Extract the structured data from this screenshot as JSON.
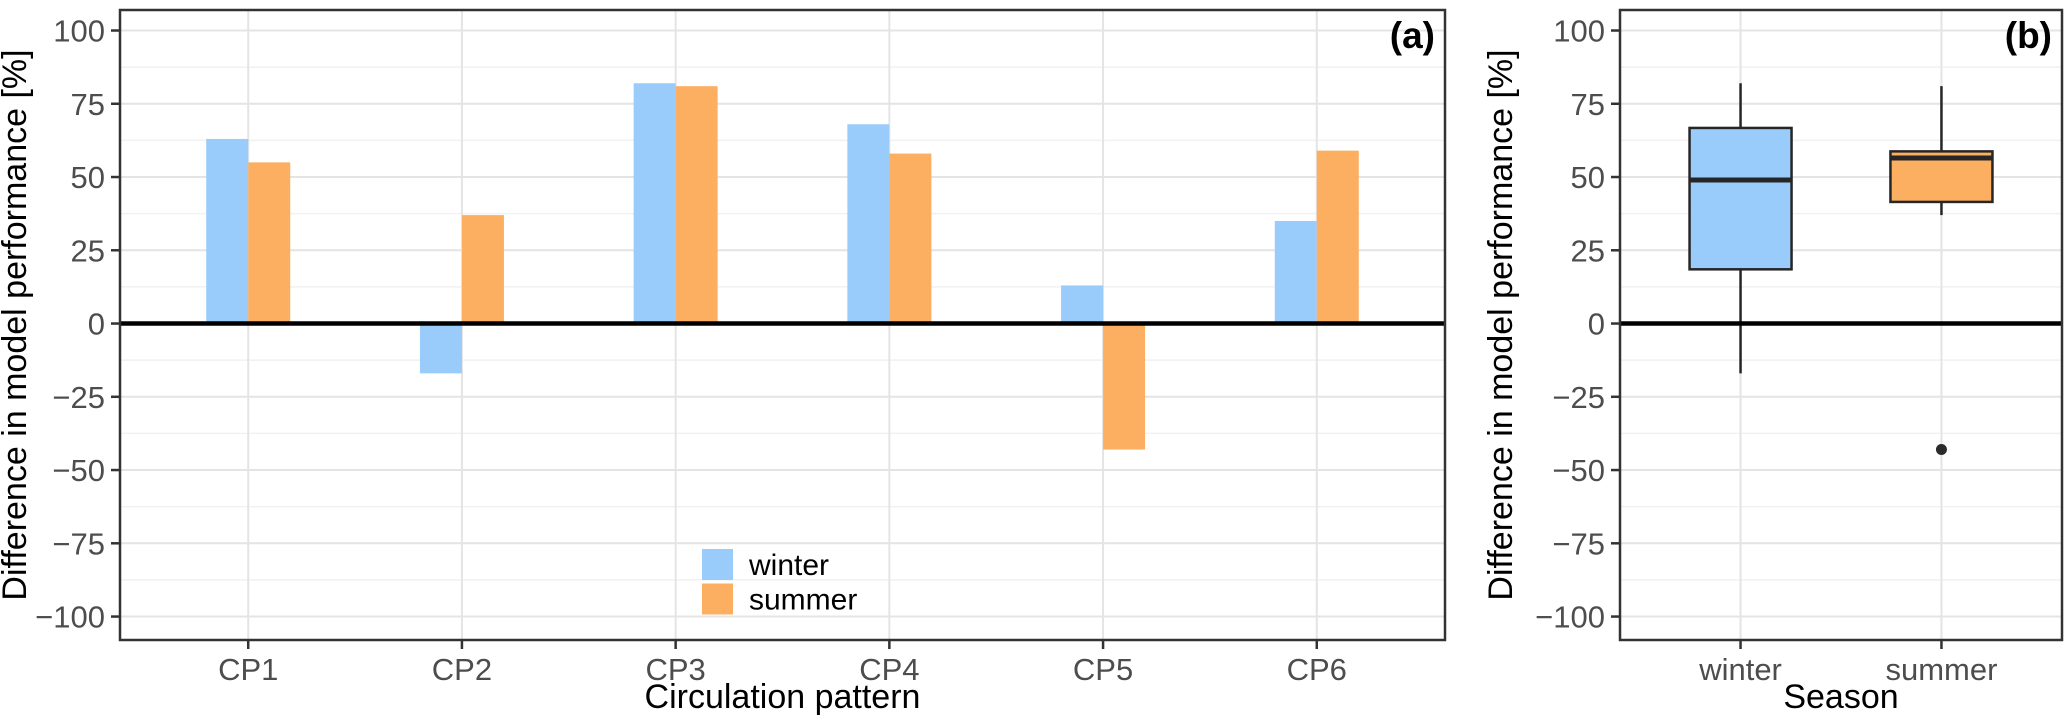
{
  "figure_background": "#ffffff",
  "panel_border_color": "#333333",
  "grid_major_color": "#e4e4e4",
  "grid_minor_color": "#f1f1f1",
  "tick_label_color": "#4d4d4d",
  "axis_title_color": "#000000",
  "zero_line_color": "#000000",
  "box_stroke_color": "#262626",
  "chart_data": [
    {
      "type": "bar",
      "panel_tag": "(a)",
      "xlabel": "Circulation pattern",
      "ylabel": "Difference in model performance [%]",
      "categories": [
        "CP1",
        "CP2",
        "CP3",
        "CP4",
        "CP5",
        "CP6"
      ],
      "series": [
        {
          "name": "winter",
          "color": "#99CCFA",
          "values": [
            63,
            -17,
            82,
            68,
            13,
            35
          ]
        },
        {
          "name": "summer",
          "color": "#FCAE61",
          "values": [
            55,
            37,
            81,
            58,
            -43,
            59
          ]
        }
      ],
      "ylim": [
        -108,
        107
      ],
      "yticks": [
        100,
        75,
        50,
        25,
        0,
        -25,
        -50,
        -75,
        -100
      ],
      "ytick_labels": [
        "100",
        "75",
        "50",
        "25",
        "0",
        "−25",
        "−50",
        "−75",
        "−100"
      ],
      "minor_yticks": [
        87.5,
        62.5,
        37.5,
        12.5,
        -12.5,
        -37.5,
        -62.5,
        -87.5
      ],
      "grid": true,
      "zero_line": true,
      "legend": {
        "position": "inside-bottom-center",
        "entries": [
          {
            "label": "winter",
            "color": "#99CCFA"
          },
          {
            "label": "summer",
            "color": "#FCAE61"
          }
        ]
      }
    },
    {
      "type": "boxplot",
      "panel_tag": "(b)",
      "xlabel": "Season",
      "ylabel": "Difference in model performance [%]",
      "categories": [
        "winter",
        "summer"
      ],
      "boxes": [
        {
          "name": "winter",
          "color": "#99CCFA",
          "whisker_low": -17,
          "q1": 18.5,
          "median": 49,
          "q3": 66.75,
          "whisker_high": 82,
          "outliers": []
        },
        {
          "name": "summer",
          "color": "#FCAE61",
          "whisker_low": 37,
          "q1": 41.5,
          "median": 56.5,
          "q3": 58.75,
          "whisker_high": 81,
          "outliers": [
            -43
          ]
        }
      ],
      "ylim": [
        -108,
        107
      ],
      "yticks": [
        100,
        75,
        50,
        25,
        0,
        -25,
        -50,
        -75,
        -100
      ],
      "ytick_labels": [
        "100",
        "75",
        "50",
        "25",
        "0",
        "−25",
        "−50",
        "−75",
        "−100"
      ],
      "minor_yticks": [
        87.5,
        62.5,
        37.5,
        12.5,
        -12.5,
        -37.5,
        -62.5,
        -87.5
      ],
      "grid": true,
      "zero_line": true
    }
  ]
}
